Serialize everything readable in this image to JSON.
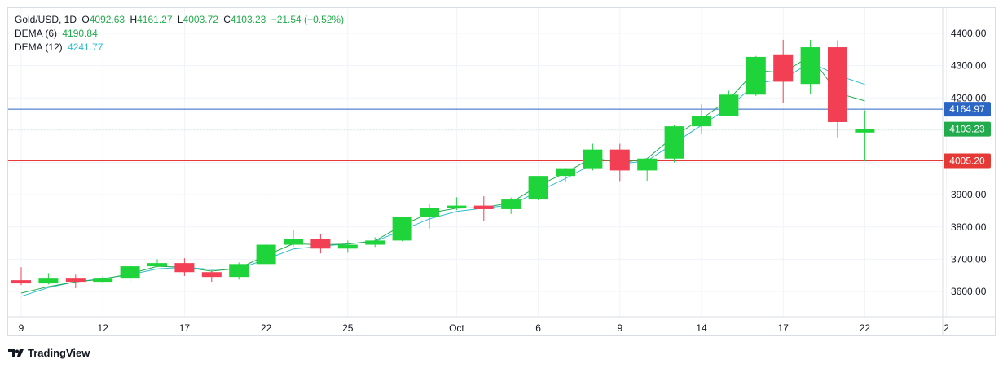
{
  "header": {
    "symbol": "Gold/USD, 1D",
    "open_label": "O",
    "open": "4092.63",
    "high_label": "H",
    "high": "4161.27",
    "low_label": "L",
    "low": "4003.72",
    "close_label": "C",
    "close": "4103.23",
    "change": "−21.54 (−0.52%)"
  },
  "indicators": [
    {
      "label": "DEMA (6)",
      "value": "4190.84",
      "color": "#22ab4c"
    },
    {
      "label": "DEMA (12)",
      "value": "4241.77",
      "color": "#2fbcd0"
    }
  ],
  "footer": {
    "brand": "TradingView"
  },
  "colors": {
    "up": "#1fd43a",
    "down": "#f23f54",
    "dema6": "#22ab4c",
    "dema12": "#2fbcd0",
    "line_blue": "#2b66c5",
    "line_red": "#e53935",
    "line_green_dotted": "#22ab4c"
  },
  "chart_data": {
    "type": "candlestick",
    "y_ticks": [
      3600,
      3700,
      3800,
      3900,
      4000,
      4100,
      4200,
      4300,
      4400
    ],
    "y_tick_labels": [
      "3600.00",
      "3700.00",
      "3800.00",
      "3900.00",
      "4000.00",
      "4100.00",
      "4200.00",
      "4300.00",
      "4400.00"
    ],
    "ylim": [
      3535,
      4435
    ],
    "x_labels": [
      {
        "i": 0,
        "text": "9"
      },
      {
        "i": 3,
        "text": "12"
      },
      {
        "i": 6,
        "text": "17"
      },
      {
        "i": 9,
        "text": "22"
      },
      {
        "i": 12,
        "text": "25"
      },
      {
        "i": 16,
        "text": "Oct"
      },
      {
        "i": 19,
        "text": "6"
      },
      {
        "i": 22,
        "text": "9"
      },
      {
        "i": 25,
        "text": "14"
      },
      {
        "i": 28,
        "text": "17"
      },
      {
        "i": 31,
        "text": "22"
      },
      {
        "i": 34,
        "text": "2"
      }
    ],
    "candles": [
      {
        "o": 3635,
        "h": 3675,
        "l": 3620,
        "c": 3625
      },
      {
        "o": 3625,
        "h": 3657,
        "l": 3622,
        "c": 3640
      },
      {
        "o": 3640,
        "h": 3652,
        "l": 3610,
        "c": 3630
      },
      {
        "o": 3630,
        "h": 3648,
        "l": 3628,
        "c": 3640
      },
      {
        "o": 3640,
        "h": 3685,
        "l": 3628,
        "c": 3678
      },
      {
        "o": 3678,
        "h": 3700,
        "l": 3675,
        "c": 3688
      },
      {
        "o": 3688,
        "h": 3703,
        "l": 3648,
        "c": 3660
      },
      {
        "o": 3660,
        "h": 3665,
        "l": 3630,
        "c": 3645
      },
      {
        "o": 3645,
        "h": 3690,
        "l": 3637,
        "c": 3685
      },
      {
        "o": 3685,
        "h": 3748,
        "l": 3685,
        "c": 3745
      },
      {
        "o": 3745,
        "h": 3790,
        "l": 3740,
        "c": 3762
      },
      {
        "o": 3762,
        "h": 3778,
        "l": 3718,
        "c": 3733
      },
      {
        "o": 3733,
        "h": 3758,
        "l": 3720,
        "c": 3745
      },
      {
        "o": 3745,
        "h": 3768,
        "l": 3738,
        "c": 3758
      },
      {
        "o": 3758,
        "h": 3832,
        "l": 3756,
        "c": 3832
      },
      {
        "o": 3832,
        "h": 3872,
        "l": 3795,
        "c": 3858
      },
      {
        "o": 3858,
        "h": 3892,
        "l": 3852,
        "c": 3866
      },
      {
        "o": 3866,
        "h": 3895,
        "l": 3818,
        "c": 3855
      },
      {
        "o": 3855,
        "h": 3891,
        "l": 3840,
        "c": 3885
      },
      {
        "o": 3885,
        "h": 3958,
        "l": 3883,
        "c": 3958
      },
      {
        "o": 3958,
        "h": 3983,
        "l": 3940,
        "c": 3982
      },
      {
        "o": 3982,
        "h": 4058,
        "l": 3975,
        "c": 4040
      },
      {
        "o": 4040,
        "h": 4058,
        "l": 3942,
        "c": 3975
      },
      {
        "o": 3975,
        "h": 4012,
        "l": 3943,
        "c": 4012
      },
      {
        "o": 4012,
        "h": 4117,
        "l": 4000,
        "c": 4112
      },
      {
        "o": 4112,
        "h": 4180,
        "l": 4090,
        "c": 4145
      },
      {
        "o": 4145,
        "h": 4222,
        "l": 4145,
        "c": 4210
      },
      {
        "o": 4210,
        "h": 4330,
        "l": 4206,
        "c": 4327
      },
      {
        "o": 4335,
        "h": 4380,
        "l": 4185,
        "c": 4250
      },
      {
        "o": 4243,
        "h": 4380,
        "l": 4213,
        "c": 4357
      },
      {
        "o": 4357,
        "h": 4379,
        "l": 4078,
        "c": 4125
      },
      {
        "o": 4092.63,
        "h": 4161.27,
        "l": 4003.72,
        "c": 4103.23
      }
    ],
    "dema6": [
      3595,
      3615,
      3630,
      3638,
      3655,
      3678,
      3675,
      3663,
      3672,
      3712,
      3748,
      3745,
      3747,
      3757,
      3805,
      3843,
      3858,
      3860,
      3875,
      3928,
      3968,
      4015,
      3998,
      4012,
      4082,
      4135,
      4195,
      4285,
      4278,
      4330,
      4215,
      4190.84
    ],
    "dema12": [
      3585,
      3612,
      3630,
      3640,
      3652,
      3670,
      3675,
      3668,
      3670,
      3700,
      3732,
      3740,
      3748,
      3755,
      3790,
      3825,
      3848,
      3858,
      3868,
      3910,
      3950,
      3995,
      3995,
      4005,
      4060,
      4115,
      4170,
      4245,
      4258,
      4310,
      4270,
      4241.77
    ],
    "price_lines": [
      {
        "value": 4164.97,
        "label": "4164.97",
        "color": "#2b66c5",
        "style": "solid"
      },
      {
        "value": 4103.23,
        "label": "4103.23",
        "color": "#22ab4c",
        "style": "dotted"
      },
      {
        "value": 4005.2,
        "label": "4005.20",
        "color": "#e53935",
        "style": "solid"
      }
    ]
  }
}
